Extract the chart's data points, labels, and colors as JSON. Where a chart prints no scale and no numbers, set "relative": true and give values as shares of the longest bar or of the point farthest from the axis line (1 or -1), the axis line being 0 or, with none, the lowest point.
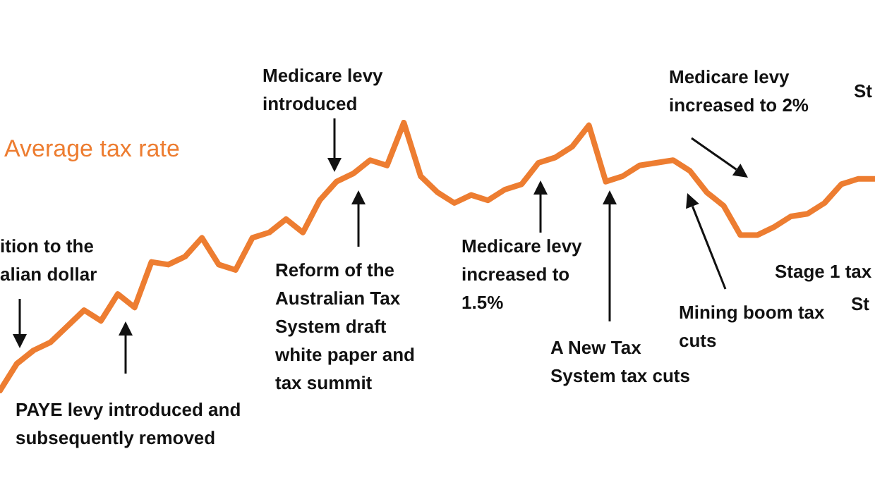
{
  "chart_data": {
    "type": "line",
    "title": "Average tax rate",
    "relative": true,
    "marker": "none",
    "line_style": "solid",
    "categories": [
      null,
      null,
      null,
      null,
      null,
      null,
      null,
      null,
      null,
      null,
      null,
      null,
      null,
      null,
      null,
      null,
      null,
      null,
      null,
      null,
      null,
      null,
      null,
      null,
      null,
      null,
      null,
      null,
      null,
      null,
      null,
      null,
      null,
      null,
      null,
      null,
      null,
      null,
      null,
      null,
      null,
      null,
      null,
      null,
      null,
      null,
      null,
      null,
      null,
      null,
      null,
      null,
      null
    ],
    "series": [
      {
        "color": "#ed7d31",
        "values": [
          0,
          0.1,
          0.15,
          0.18,
          0.24,
          0.3,
          0.26,
          0.36,
          0.31,
          0.48,
          0.47,
          0.5,
          0.57,
          0.47,
          0.45,
          0.57,
          0.59,
          0.64,
          0.59,
          0.71,
          0.78,
          0.81,
          0.86,
          0.84,
          1.0,
          0.8,
          0.74,
          0.7,
          0.73,
          0.71,
          0.75,
          0.77,
          0.85,
          0.87,
          0.91,
          0.99,
          0.78,
          0.8,
          0.84,
          0.85,
          0.86,
          0.82,
          0.74,
          0.69,
          0.58,
          0.58,
          0.61,
          0.65,
          0.66,
          0.7,
          0.77,
          0.79,
          0.79
        ]
      }
    ],
    "annotations": [
      "Medicare levy\nintroduced",
      "Medicare levy\nincreased to 2%",
      "St",
      "ition to the\nalian dollar",
      "PAYE levy introduced and\nsubsequently removed",
      "Reform of the\nAustralian Tax\nSystem draft\nwhite paper and\ntax summit",
      "Medicare levy\nincreased to\n1.5%",
      "A New Tax\nSystem tax cuts",
      "Mining boom tax\ncuts",
      "Stage 1 tax",
      "St"
    ]
  }
}
